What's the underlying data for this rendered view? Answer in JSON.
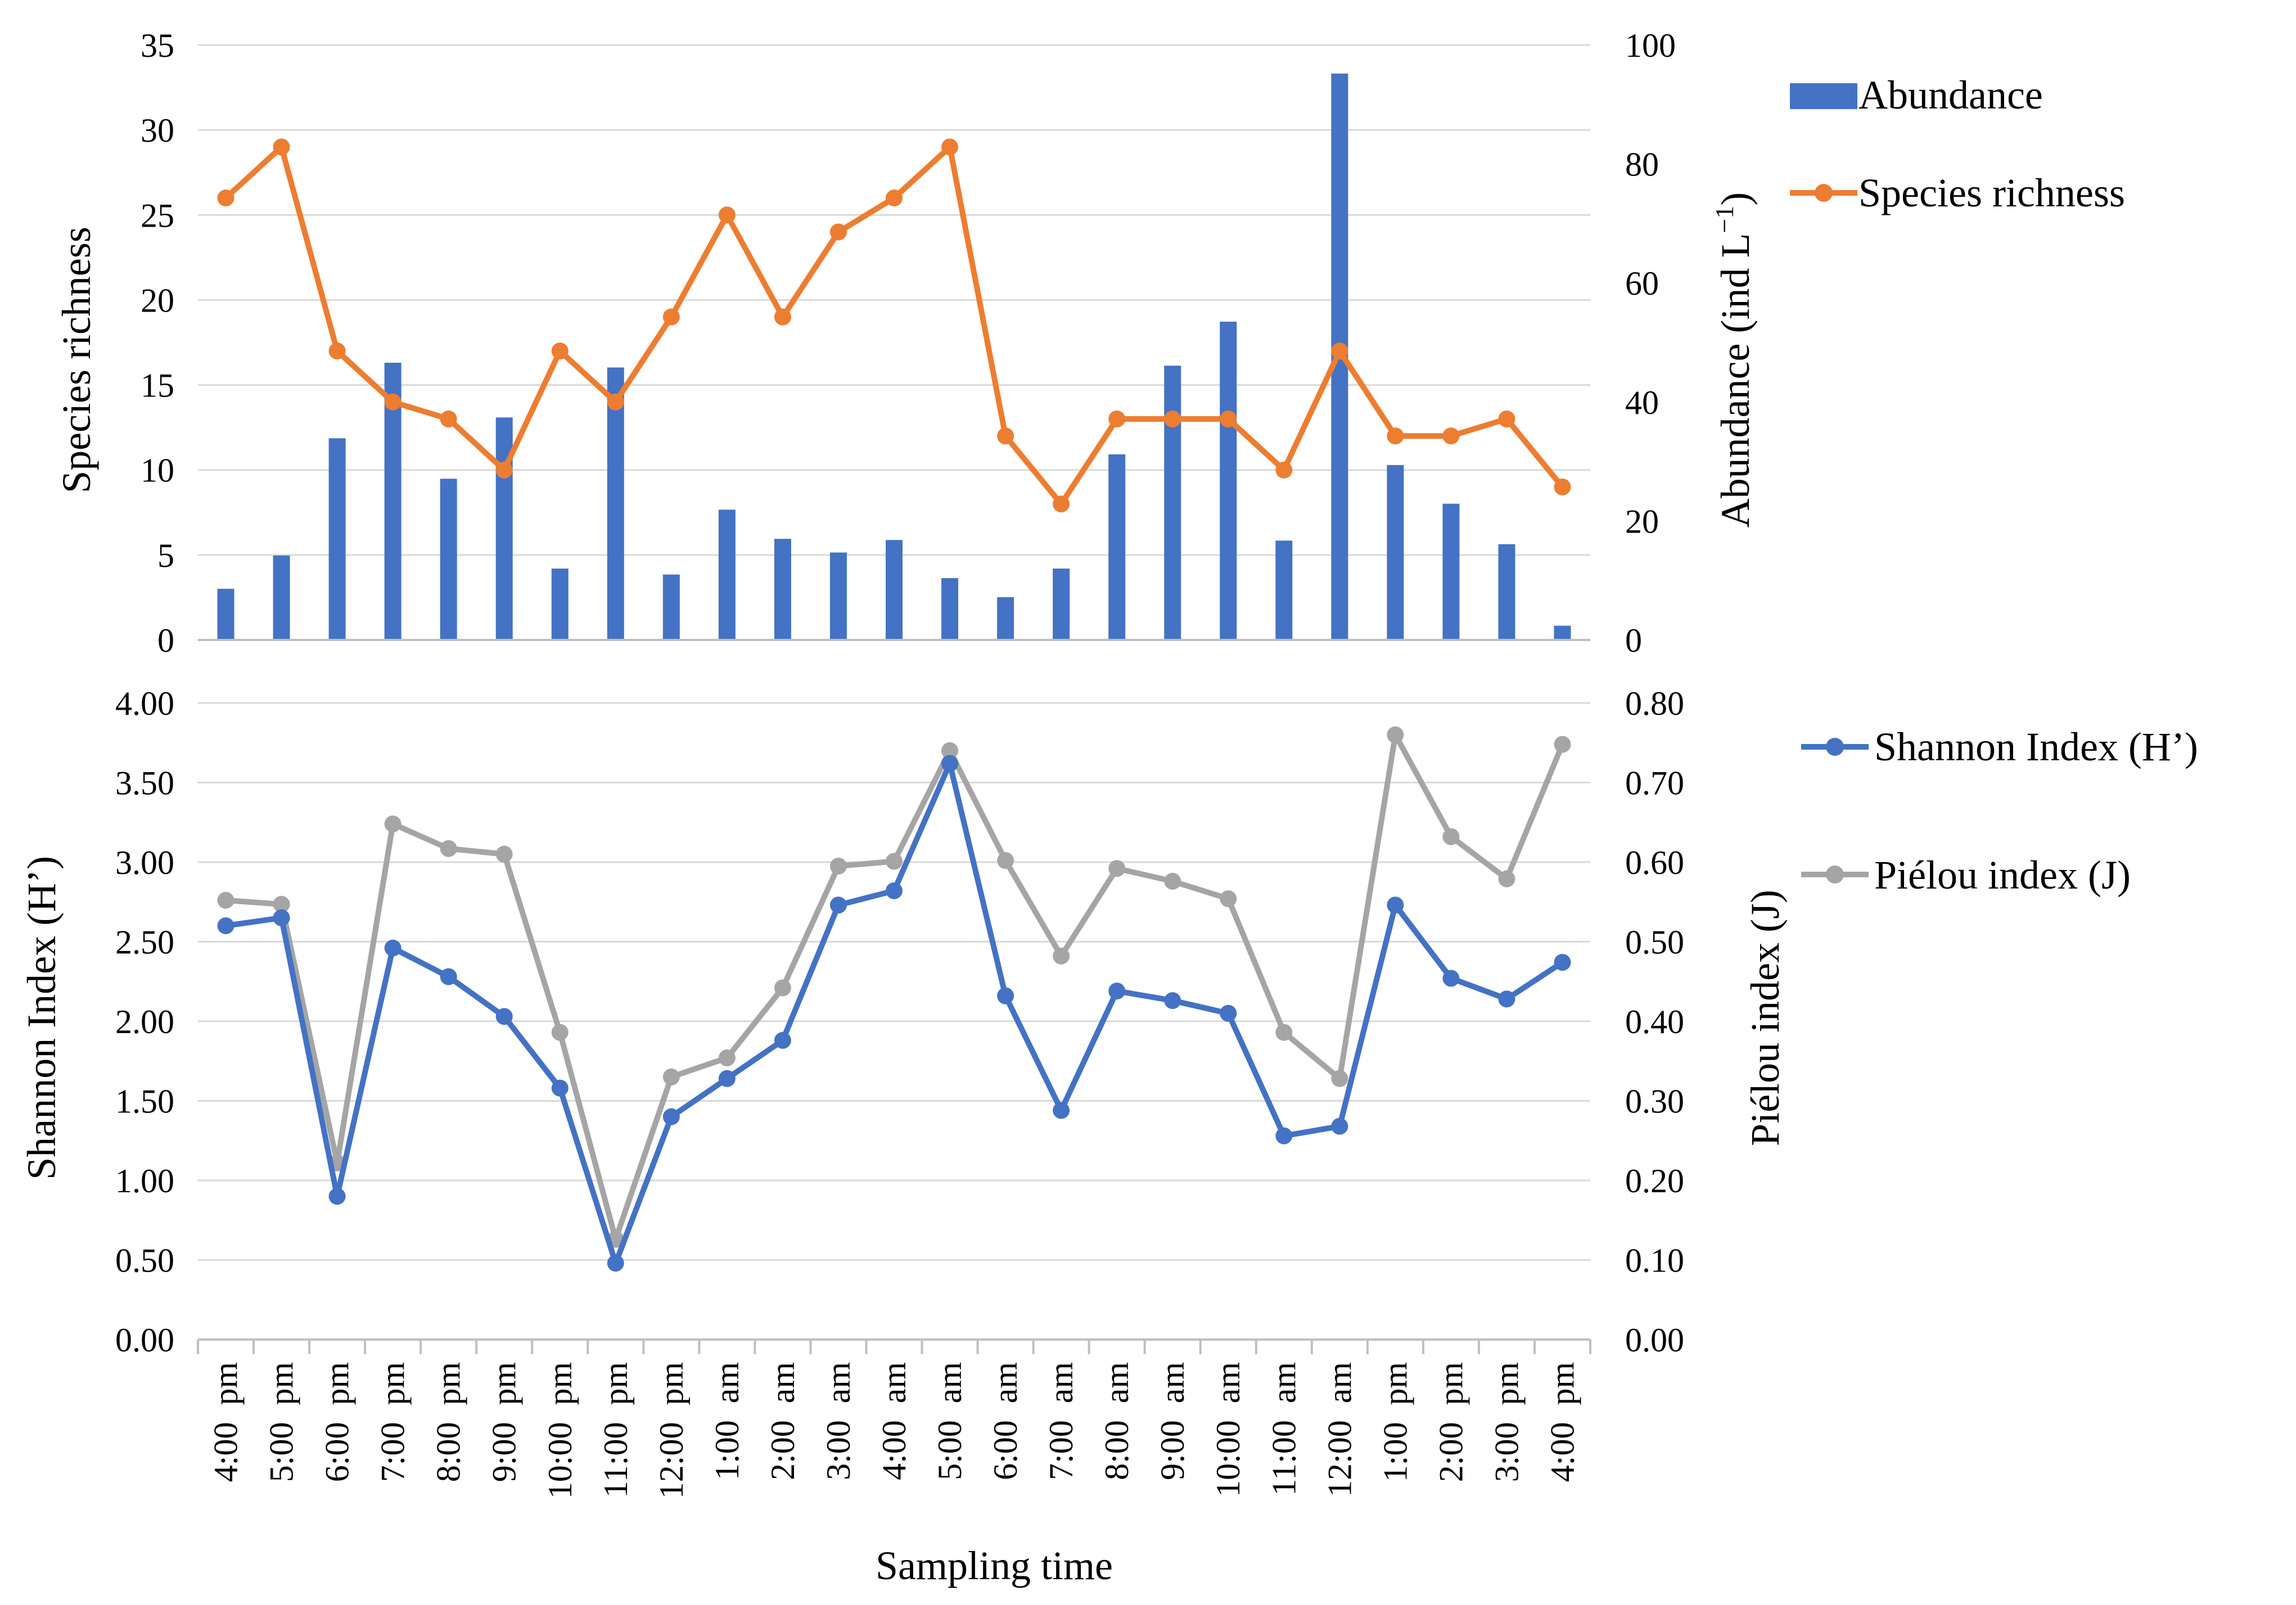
{
  "colors": {
    "abundance": "#4472C4",
    "richness": "#ED7D31",
    "shannon": "#4472C4",
    "pielou": "#A5A5A5",
    "gridline": "#D9D9D9",
    "axis": "#BFBFBF"
  },
  "chart_data": [
    {
      "type": "bar+line",
      "panel": "top",
      "categories": [
        "4:00  pm",
        "5:00  pm",
        "6:00  pm",
        "7:00  pm",
        "8:00  pm",
        "9:00  pm",
        "10:00  pm",
        "11:00  pm",
        "12:00  pm",
        "1:00  am",
        "2:00  am",
        "3:00  am",
        "4:00  am",
        "5:00  am",
        "6:00  am",
        "7:00  am",
        "8:00  am",
        "9:00  am",
        "10:00  am",
        "11:00  am",
        "12:00  am",
        "1:00  pm",
        "2:00  pm",
        "3:00  pm",
        "4:00  pm"
      ],
      "ylabel_left": "Species  richness",
      "ylabel_right_text": "Abundance  (ind L",
      "ylabel_right_sup": "−1",
      "ylabel_right_close": ")",
      "ylim_left": [
        0,
        35
      ],
      "yticks_left": [
        "0",
        "5",
        "10",
        "15",
        "20",
        "25",
        "30",
        "35"
      ],
      "ylim_right": [
        0,
        100
      ],
      "yticks_right": [
        "0",
        "20",
        "40",
        "60",
        "80",
        "100"
      ],
      "grid": true,
      "legend_position": "right",
      "series": [
        {
          "name": "Abundance",
          "kind": "bar",
          "axis": "right",
          "values": [
            8.6,
            14.2,
            33.9,
            46.6,
            27.1,
            37.4,
            12.0,
            45.8,
            11.0,
            21.9,
            17.0,
            14.7,
            16.8,
            10.4,
            7.2,
            12.0,
            31.2,
            46.1,
            53.5,
            16.7,
            95.2,
            29.4,
            22.9,
            16.1,
            2.4
          ]
        },
        {
          "name": "Species richness",
          "kind": "line",
          "axis": "left",
          "values": [
            26,
            29,
            17,
            14,
            13,
            10,
            17,
            14,
            19,
            25,
            19,
            24,
            26,
            29,
            12,
            8,
            13,
            13,
            13,
            10,
            17,
            12,
            12,
            13,
            9
          ]
        }
      ]
    },
    {
      "type": "line",
      "panel": "bottom",
      "categories": [
        "4:00  pm",
        "5:00  pm",
        "6:00  pm",
        "7:00  pm",
        "8:00  pm",
        "9:00  pm",
        "10:00  pm",
        "11:00  pm",
        "12:00  pm",
        "1:00  am",
        "2:00  am",
        "3:00  am",
        "4:00  am",
        "5:00  am",
        "6:00  am",
        "7:00  am",
        "8:00  am",
        "9:00  am",
        "10:00  am",
        "11:00  am",
        "12:00  am",
        "1:00  pm",
        "2:00  pm",
        "3:00  pm",
        "4:00  pm"
      ],
      "xlabel": "Sampling time",
      "ylabel_left": "Shannon  Index  (H’)",
      "ylabel_right": "Piélou  index  (J)",
      "ylim_left": [
        0,
        4
      ],
      "yticks_left": [
        "0.00",
        "0.50",
        "1.00",
        "1.50",
        "2.00",
        "2.50",
        "3.00",
        "3.50",
        "4.00"
      ],
      "ylim_right": [
        0,
        0.8
      ],
      "yticks_right": [
        "0.00",
        "0.10",
        "0.20",
        "0.30",
        "0.40",
        "0.50",
        "0.60",
        "0.70",
        "0.80"
      ],
      "grid": true,
      "legend_position": "right",
      "series": [
        {
          "name": "Shannon  Index  (H’)",
          "axis": "left",
          "values": [
            2.6,
            2.65,
            0.9,
            2.46,
            2.28,
            2.03,
            1.58,
            0.48,
            1.4,
            1.64,
            1.88,
            2.73,
            2.82,
            3.62,
            2.16,
            1.44,
            2.19,
            2.13,
            2.05,
            1.28,
            1.34,
            2.73,
            2.27,
            2.14,
            2.37
          ]
        },
        {
          "name": "Piélou  index  (J)",
          "axis": "right",
          "values": [
            0.552,
            0.547,
            0.222,
            0.648,
            0.617,
            0.61,
            0.386,
            0.126,
            0.33,
            0.354,
            0.442,
            0.595,
            0.601,
            0.74,
            0.602,
            0.482,
            0.592,
            0.576,
            0.554,
            0.386,
            0.328,
            0.76,
            0.632,
            0.579,
            0.748
          ]
        }
      ]
    }
  ]
}
